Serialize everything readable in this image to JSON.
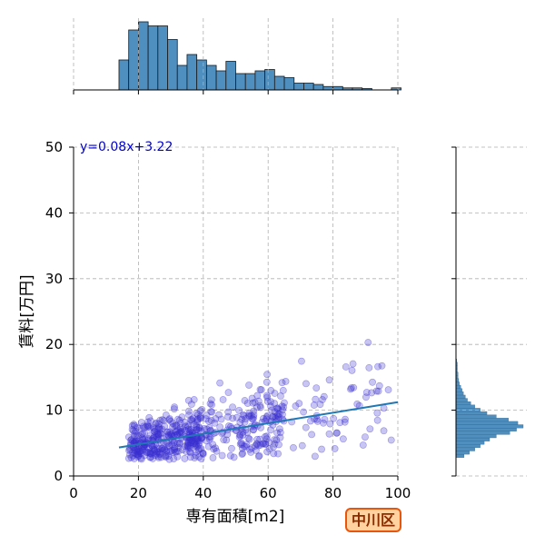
{
  "chart_data": {
    "type": "scatter",
    "title": "",
    "xlabel": "専有面積[m2]",
    "ylabel": "賃料[万円]",
    "xlim": [
      0,
      100
    ],
    "ylim": [
      0,
      50
    ],
    "x_ticks": [
      "0",
      "20",
      "40",
      "60",
      "80",
      "100"
    ],
    "y_ticks": [
      "0",
      "10",
      "20",
      "30",
      "40",
      "50"
    ],
    "grid": true,
    "regression": {
      "label": "y=0.08x+3.22",
      "slope": 0.08,
      "intercept": 3.22,
      "x_range": [
        14,
        100
      ]
    },
    "area_histogram": {
      "bin_start": 14,
      "bin_width": 3,
      "relative_heights": [
        0.44,
        0.88,
        1.0,
        0.94,
        0.94,
        0.74,
        0.36,
        0.52,
        0.44,
        0.36,
        0.28,
        0.42,
        0.24,
        0.24,
        0.28,
        0.3,
        0.2,
        0.18,
        0.1,
        0.1,
        0.08,
        0.05,
        0.05,
        0.03,
        0.03,
        0.02,
        0.0,
        0.0,
        0.03
      ]
    },
    "rent_histogram": {
      "bin_start": 2.8,
      "bin_width": 0.5,
      "relative_heights": [
        0.12,
        0.2,
        0.28,
        0.36,
        0.42,
        0.5,
        0.6,
        0.8,
        0.9,
        1.0,
        0.92,
        0.78,
        0.6,
        0.46,
        0.36,
        0.28,
        0.22,
        0.17,
        0.14,
        0.11,
        0.09,
        0.07,
        0.05,
        0.04,
        0.03,
        0.03,
        0.02,
        0.02,
        0.02,
        0.01
      ]
    }
  },
  "badge": {
    "label": "中川区"
  },
  "colors": {
    "points": "#3a2fd0",
    "line": "#1f77b4",
    "hist_fill": "#4f8fc0",
    "grid": "#b0b0b0",
    "badge_border": "#e8560e",
    "badge_fill": "#ffd2a0"
  }
}
